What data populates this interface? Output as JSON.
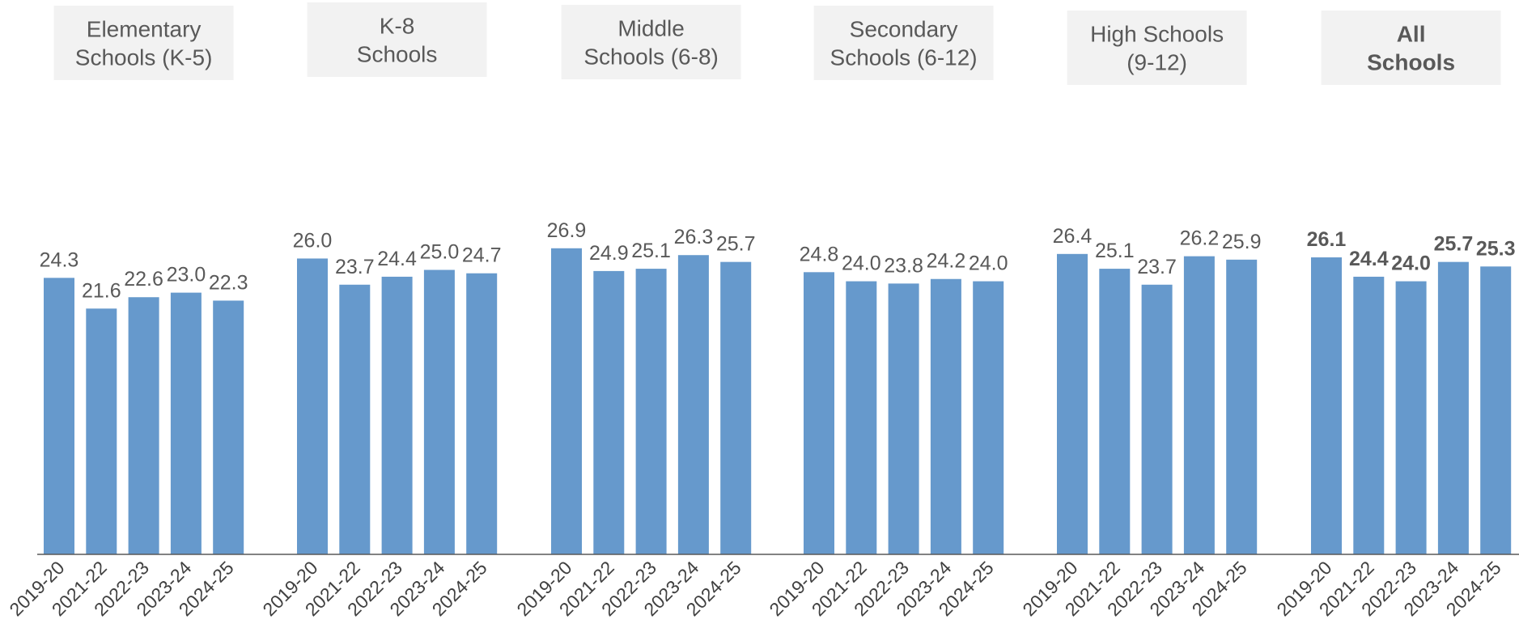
{
  "chart_data": {
    "type": "bar",
    "title": "",
    "xlabel": "",
    "ylabel": "",
    "ylim": [
      0,
      30
    ],
    "grid": false,
    "legend": "none",
    "bar_color": "#6699cc",
    "groups": [
      {
        "label_lines": [
          "Elementary",
          "Schools (K-5)"
        ],
        "bold": false,
        "categories": [
          "2019-20",
          "2021-22",
          "2022-23",
          "2023-24",
          "2024-25"
        ],
        "values": [
          24.3,
          21.6,
          22.6,
          23.0,
          22.3
        ],
        "value_labels": [
          "24.3",
          "21.6",
          "22.6",
          "23.0",
          "22.3"
        ]
      },
      {
        "label_lines": [
          "K-8",
          "Schools"
        ],
        "bold": false,
        "categories": [
          "2019-20",
          "2021-22",
          "2022-23",
          "2023-24",
          "2024-25"
        ],
        "values": [
          26.0,
          23.7,
          24.4,
          25.0,
          24.7
        ],
        "value_labels": [
          "26.0",
          "23.7",
          "24.4",
          "25.0",
          "24.7"
        ]
      },
      {
        "label_lines": [
          "Middle",
          "Schools (6-8)"
        ],
        "bold": false,
        "categories": [
          "2019-20",
          "2021-22",
          "2022-23",
          "2023-24",
          "2024-25"
        ],
        "values": [
          26.9,
          24.9,
          25.1,
          26.3,
          25.7
        ],
        "value_labels": [
          "26.9",
          "24.9",
          "25.1",
          "26.3",
          "25.7"
        ]
      },
      {
        "label_lines": [
          "Secondary",
          "Schools (6-12)"
        ],
        "bold": false,
        "categories": [
          "2019-20",
          "2021-22",
          "2022-23",
          "2023-24",
          "2024-25"
        ],
        "values": [
          24.8,
          24.0,
          23.8,
          24.2,
          24.0
        ],
        "value_labels": [
          "24.8",
          "24.0",
          "23.8",
          "24.2",
          "24.0"
        ]
      },
      {
        "label_lines": [
          "High Schools",
          "(9-12)"
        ],
        "bold": false,
        "categories": [
          "2019-20",
          "2021-22",
          "2022-23",
          "2023-24",
          "2024-25"
        ],
        "values": [
          26.4,
          25.1,
          23.7,
          26.2,
          25.9
        ],
        "value_labels": [
          "26.4",
          "25.1",
          "23.7",
          "26.2",
          "25.9"
        ]
      },
      {
        "label_lines": [
          "All",
          "Schools"
        ],
        "bold": true,
        "categories": [
          "2019-20",
          "2021-22",
          "2022-23",
          "2023-24",
          "2024-25"
        ],
        "values": [
          26.1,
          24.4,
          24.0,
          25.7,
          25.3
        ],
        "value_labels": [
          "26.1",
          "24.4",
          "24.0",
          "25.7",
          "25.3"
        ]
      }
    ]
  }
}
